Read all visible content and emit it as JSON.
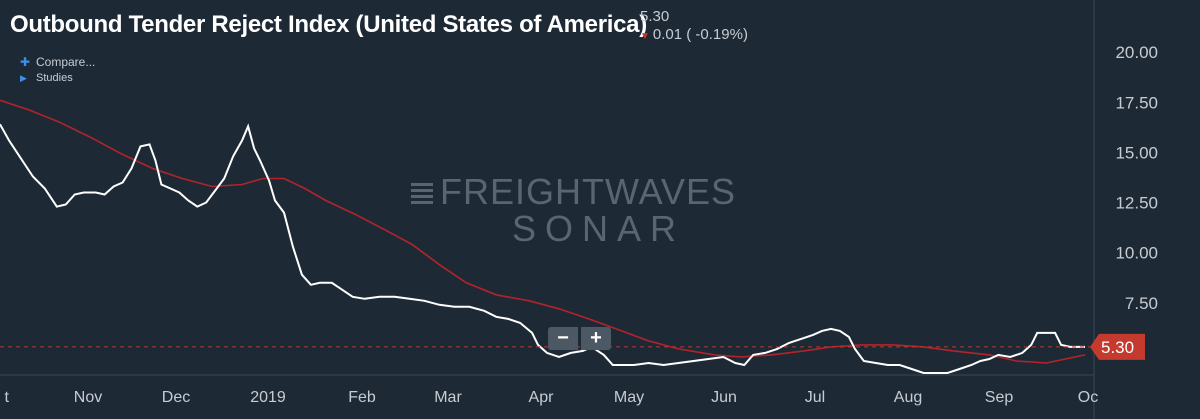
{
  "header": {
    "title": "Outbound Tender Reject Index (United States of America)",
    "last_value": "5.30",
    "change_text": "0.01 ( -0.19%)",
    "change_icon": "down-arrow-icon"
  },
  "toolbar": {
    "compare_label": "Compare...",
    "compare_icon": "plus-icon",
    "studies_label": "Studies",
    "studies_icon": "triangle-right-icon"
  },
  "zoom": {
    "out_label": "−",
    "in_label": "+"
  },
  "watermark": {
    "line1": "FREIGHTWAVES",
    "line2": "SONAR"
  },
  "colors": {
    "background": "#1d2a36",
    "series_main": "#ffffff",
    "series_avg": "#b4232a",
    "last_value_line": "#c4342c",
    "badge": "#c43a2e",
    "axis_text": "#c7ccd2"
  },
  "chart_data": {
    "type": "line",
    "title": "Outbound Tender Reject Index (United States of America)",
    "x_tick_labels": [
      "t",
      "Nov",
      "Dec",
      "2019",
      "Feb",
      "Mar",
      "Apr",
      "May",
      "Jun",
      "Jul",
      "Aug",
      "Sep",
      "Oc"
    ],
    "y_tick_labels": [
      "7.50",
      "10.00",
      "12.50",
      "15.00",
      "17.50",
      "20.00"
    ],
    "y_ticks": [
      7.5,
      10,
      12.5,
      15,
      17.5,
      20
    ],
    "ylim": [
      3.9,
      22.6
    ],
    "xlim": [
      "2018-10-05",
      "2019-10-06"
    ],
    "grid": false,
    "last_value": 5.3,
    "last_value_label": "5.30",
    "series": [
      {
        "values": [
          [
            "2018-10-05",
            16.4
          ],
          [
            "2018-10-08",
            15.6
          ],
          [
            "2018-10-12",
            14.7
          ],
          [
            "2018-10-16",
            13.8
          ],
          [
            "2018-10-20",
            13.2
          ],
          [
            "2018-10-24",
            12.3
          ],
          [
            "2018-10-27",
            12.4
          ],
          [
            "2018-10-30",
            12.9
          ],
          [
            "2018-11-02",
            13.0
          ],
          [
            "2018-11-06",
            13.0
          ],
          [
            "2018-11-09",
            12.9
          ],
          [
            "2018-11-12",
            13.3
          ],
          [
            "2018-11-15",
            13.5
          ],
          [
            "2018-11-18",
            14.2
          ],
          [
            "2018-11-21",
            15.3
          ],
          [
            "2018-11-24",
            15.4
          ],
          [
            "2018-11-26",
            14.6
          ],
          [
            "2018-11-28",
            13.4
          ],
          [
            "2018-12-01",
            13.2
          ],
          [
            "2018-12-04",
            13.0
          ],
          [
            "2018-12-07",
            12.6
          ],
          [
            "2018-12-10",
            12.3
          ],
          [
            "2018-12-13",
            12.5
          ],
          [
            "2018-12-16",
            13.1
          ],
          [
            "2018-12-19",
            13.7
          ],
          [
            "2018-12-22",
            14.8
          ],
          [
            "2018-12-25",
            15.6
          ],
          [
            "2018-12-27",
            16.3
          ],
          [
            "2018-12-29",
            15.2
          ],
          [
            "2018-12-31",
            14.6
          ],
          [
            "2019-01-03",
            13.6
          ],
          [
            "2019-01-05",
            12.6
          ],
          [
            "2019-01-08",
            12.0
          ],
          [
            "2019-01-11",
            10.3
          ],
          [
            "2019-01-14",
            8.9
          ],
          [
            "2019-01-17",
            8.4
          ],
          [
            "2019-01-20",
            8.5
          ],
          [
            "2019-01-24",
            8.5
          ],
          [
            "2019-01-27",
            8.2
          ],
          [
            "2019-01-31",
            7.8
          ],
          [
            "2019-02-04",
            7.7
          ],
          [
            "2019-02-09",
            7.8
          ],
          [
            "2019-02-14",
            7.8
          ],
          [
            "2019-02-19",
            7.7
          ],
          [
            "2019-02-24",
            7.6
          ],
          [
            "2019-03-01",
            7.4
          ],
          [
            "2019-03-06",
            7.3
          ],
          [
            "2019-03-11",
            7.3
          ],
          [
            "2019-03-16",
            7.1
          ],
          [
            "2019-03-20",
            6.8
          ],
          [
            "2019-03-24",
            6.7
          ],
          [
            "2019-03-28",
            6.5
          ],
          [
            "2019-04-01",
            6.0
          ],
          [
            "2019-04-03",
            5.4
          ],
          [
            "2019-04-06",
            5.0
          ],
          [
            "2019-04-10",
            4.8
          ],
          [
            "2019-04-14",
            5.0
          ],
          [
            "2019-04-18",
            5.1
          ],
          [
            "2019-04-21",
            5.3
          ],
          [
            "2019-04-23",
            5.1
          ],
          [
            "2019-04-25",
            4.9
          ],
          [
            "2019-04-28",
            4.4
          ],
          [
            "2019-05-01",
            4.4
          ],
          [
            "2019-05-05",
            4.4
          ],
          [
            "2019-05-10",
            4.5
          ],
          [
            "2019-05-15",
            4.4
          ],
          [
            "2019-05-20",
            4.5
          ],
          [
            "2019-05-25",
            4.6
          ],
          [
            "2019-05-30",
            4.7
          ],
          [
            "2019-06-04",
            4.8
          ],
          [
            "2019-06-08",
            4.5
          ],
          [
            "2019-06-11",
            4.4
          ],
          [
            "2019-06-14",
            4.9
          ],
          [
            "2019-06-18",
            5.0
          ],
          [
            "2019-06-22",
            5.2
          ],
          [
            "2019-06-26",
            5.5
          ],
          [
            "2019-06-30",
            5.7
          ],
          [
            "2019-07-04",
            5.9
          ],
          [
            "2019-07-07",
            6.1
          ],
          [
            "2019-07-10",
            6.2
          ],
          [
            "2019-07-13",
            6.1
          ],
          [
            "2019-07-16",
            5.8
          ],
          [
            "2019-07-18",
            5.2
          ],
          [
            "2019-07-21",
            4.6
          ],
          [
            "2019-07-25",
            4.5
          ],
          [
            "2019-07-29",
            4.4
          ],
          [
            "2019-08-02",
            4.4
          ],
          [
            "2019-08-06",
            4.2
          ],
          [
            "2019-08-10",
            4.0
          ],
          [
            "2019-08-14",
            4.0
          ],
          [
            "2019-08-18",
            4.0
          ],
          [
            "2019-08-22",
            4.2
          ],
          [
            "2019-08-26",
            4.4
          ],
          [
            "2019-08-29",
            4.6
          ],
          [
            "2019-09-01",
            4.7
          ],
          [
            "2019-09-04",
            4.9
          ],
          [
            "2019-09-08",
            4.8
          ],
          [
            "2019-09-12",
            5.0
          ],
          [
            "2019-09-15",
            5.4
          ],
          [
            "2019-09-17",
            6.0
          ],
          [
            "2019-09-20",
            6.0
          ],
          [
            "2019-09-23",
            6.0
          ],
          [
            "2019-09-25",
            5.4
          ],
          [
            "2019-09-28",
            5.3
          ],
          [
            "2019-10-01",
            5.3
          ],
          [
            "2019-10-03",
            5.3
          ]
        ]
      },
      {
        "values": [
          [
            "2018-10-05",
            17.6
          ],
          [
            "2018-10-15",
            17.1
          ],
          [
            "2018-10-25",
            16.5
          ],
          [
            "2018-11-05",
            15.7
          ],
          [
            "2018-11-15",
            14.9
          ],
          [
            "2018-11-25",
            14.2
          ],
          [
            "2018-12-05",
            13.7
          ],
          [
            "2018-12-15",
            13.3
          ],
          [
            "2018-12-25",
            13.4
          ],
          [
            "2019-01-01",
            13.7
          ],
          [
            "2019-01-08",
            13.7
          ],
          [
            "2019-01-15",
            13.2
          ],
          [
            "2019-01-22",
            12.6
          ],
          [
            "2019-02-01",
            11.9
          ],
          [
            "2019-02-10",
            11.2
          ],
          [
            "2019-02-20",
            10.4
          ],
          [
            "2019-03-01",
            9.4
          ],
          [
            "2019-03-10",
            8.5
          ],
          [
            "2019-03-20",
            7.9
          ],
          [
            "2019-03-31",
            7.6
          ],
          [
            "2019-04-10",
            7.2
          ],
          [
            "2019-04-20",
            6.7
          ],
          [
            "2019-05-01",
            6.1
          ],
          [
            "2019-05-10",
            5.6
          ],
          [
            "2019-05-20",
            5.2
          ],
          [
            "2019-06-01",
            4.9
          ],
          [
            "2019-06-10",
            4.8
          ],
          [
            "2019-06-20",
            4.9
          ],
          [
            "2019-07-01",
            5.1
          ],
          [
            "2019-07-10",
            5.3
          ],
          [
            "2019-07-20",
            5.4
          ],
          [
            "2019-07-31",
            5.4
          ],
          [
            "2019-08-10",
            5.3
          ],
          [
            "2019-08-20",
            5.1
          ],
          [
            "2019-09-01",
            4.9
          ],
          [
            "2019-09-10",
            4.6
          ],
          [
            "2019-09-20",
            4.5
          ],
          [
            "2019-10-03",
            4.9
          ]
        ]
      }
    ]
  }
}
